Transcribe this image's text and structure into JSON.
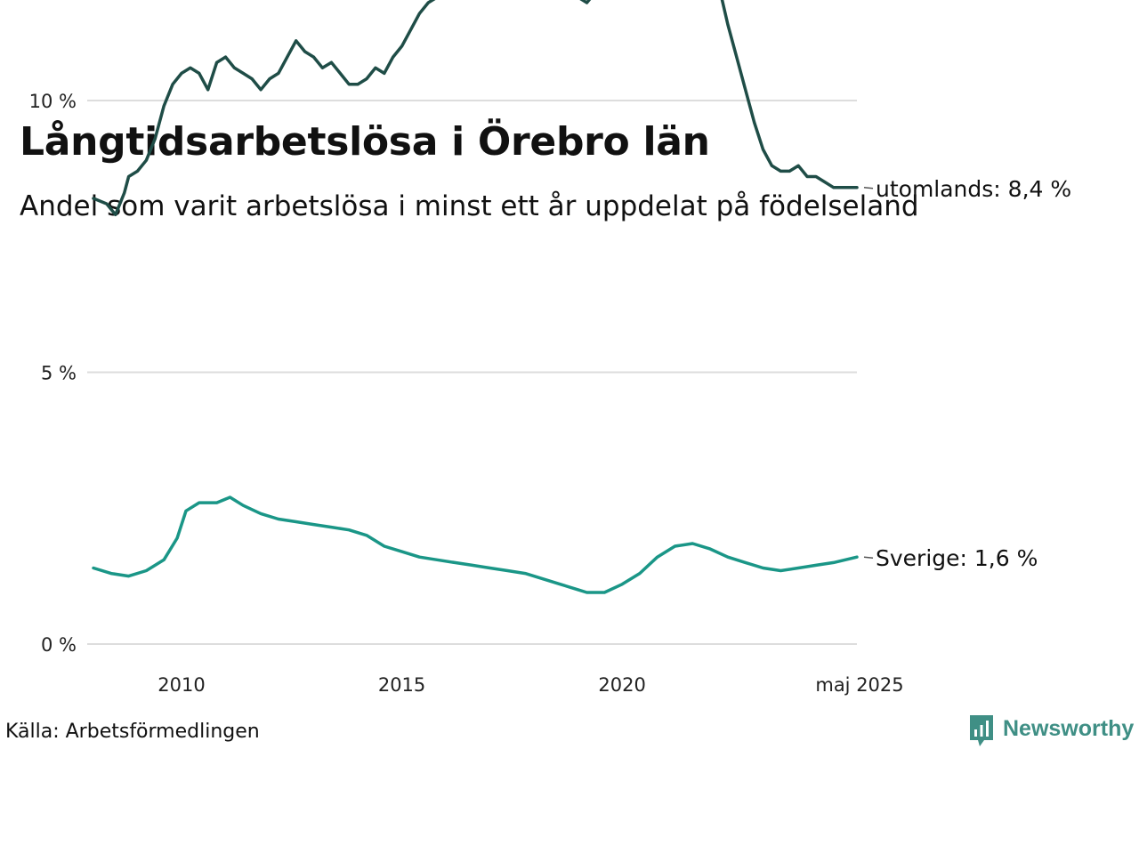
{
  "title": "Långtidsarbetslösa i Örebro län",
  "subtitle": "Andel som varit arbetslösa i minst ett år uppdelat på födelseland",
  "source": "Källa: Arbetsförmedlingen",
  "brand": "Newsworthy",
  "colors": {
    "utomlands": "#1f4d47",
    "sverige": "#1a9687",
    "grid": "#dddddd",
    "brand": "#3f8f85"
  },
  "chart_data": {
    "type": "line",
    "x_ticks": [
      "2010",
      "2015",
      "2020",
      "maj 2025"
    ],
    "y_ticks": [
      "0 %",
      "5 %",
      "10 %"
    ],
    "ylim": [
      0,
      14
    ],
    "grid": "horizontal",
    "series": [
      {
        "key": "utomlands",
        "end_label": "utomlands: 8,4 %",
        "x": [
          2008.0,
          2008.3,
          2008.5,
          2008.7,
          2008.8,
          2009.0,
          2009.2,
          2009.4,
          2009.6,
          2009.8,
          2010.0,
          2010.2,
          2010.4,
          2010.6,
          2010.8,
          2011.0,
          2011.2,
          2011.4,
          2011.6,
          2011.8,
          2012.0,
          2012.2,
          2012.4,
          2012.6,
          2012.8,
          2013.0,
          2013.2,
          2013.4,
          2013.6,
          2013.8,
          2014.0,
          2014.2,
          2014.4,
          2014.6,
          2014.8,
          2015.0,
          2015.2,
          2015.4,
          2015.6,
          2015.8,
          2016.0,
          2016.2,
          2016.4,
          2016.6,
          2016.8,
          2017.0,
          2017.2,
          2017.4,
          2017.6,
          2017.8,
          2017.9,
          2018.1,
          2018.3,
          2018.5,
          2018.7,
          2018.9,
          2019.0,
          2019.2,
          2019.4,
          2019.6,
          2019.8,
          2020.0,
          2020.1,
          2020.3,
          2020.5,
          2020.7,
          2020.9,
          2021.0,
          2021.2,
          2021.4,
          2021.6,
          2021.8,
          2022.0,
          2022.2,
          2022.4,
          2022.6,
          2022.8,
          2023.0,
          2023.2,
          2023.4,
          2023.6,
          2023.8,
          2024.0,
          2024.2,
          2024.4,
          2024.6,
          2024.8,
          2025.0,
          2025.33
        ],
        "values": [
          8.2,
          8.1,
          7.9,
          8.3,
          8.6,
          8.7,
          8.9,
          9.3,
          9.9,
          10.3,
          10.5,
          10.6,
          10.5,
          10.2,
          10.7,
          10.8,
          10.6,
          10.5,
          10.4,
          10.2,
          10.4,
          10.5,
          10.8,
          11.1,
          10.9,
          10.8,
          10.6,
          10.7,
          10.5,
          10.3,
          10.3,
          10.4,
          10.6,
          10.5,
          10.8,
          11.0,
          11.3,
          11.6,
          11.8,
          11.9,
          12.1,
          12.2,
          12.3,
          12.1,
          12.2,
          12.3,
          12.6,
          12.8,
          13.1,
          13.3,
          12.8,
          12.9,
          12.7,
          12.6,
          12.4,
          12.1,
          11.9,
          11.8,
          12.0,
          12.2,
          12.3,
          12.2,
          12.5,
          12.8,
          13.1,
          13.4,
          13.7,
          13.8,
          13.7,
          13.9,
          13.6,
          13.1,
          12.5,
          12.1,
          11.4,
          10.8,
          10.2,
          9.6,
          9.1,
          8.8,
          8.7,
          8.7,
          8.8,
          8.6,
          8.6,
          8.5,
          8.4,
          8.4,
          8.4
        ]
      },
      {
        "key": "sverige",
        "end_label": "Sverige: 1,6 %",
        "x": [
          2008.0,
          2008.4,
          2008.8,
          2009.2,
          2009.6,
          2009.9,
          2010.1,
          2010.4,
          2010.8,
          2011.1,
          2011.4,
          2011.8,
          2012.2,
          2012.6,
          2013.0,
          2013.4,
          2013.8,
          2014.2,
          2014.6,
          2015.0,
          2015.4,
          2015.8,
          2016.2,
          2016.6,
          2017.0,
          2017.4,
          2017.8,
          2018.2,
          2018.6,
          2019.0,
          2019.2,
          2019.6,
          2020.0,
          2020.4,
          2020.8,
          2021.2,
          2021.6,
          2022.0,
          2022.4,
          2022.8,
          2023.2,
          2023.6,
          2024.0,
          2024.4,
          2024.8,
          2025.33
        ],
        "values": [
          1.4,
          1.3,
          1.25,
          1.35,
          1.55,
          1.95,
          2.45,
          2.6,
          2.6,
          2.7,
          2.55,
          2.4,
          2.3,
          2.25,
          2.2,
          2.15,
          2.1,
          2.0,
          1.8,
          1.7,
          1.6,
          1.55,
          1.5,
          1.45,
          1.4,
          1.35,
          1.3,
          1.2,
          1.1,
          1.0,
          0.95,
          0.95,
          1.1,
          1.3,
          1.6,
          1.8,
          1.85,
          1.75,
          1.6,
          1.5,
          1.4,
          1.35,
          1.4,
          1.45,
          1.5,
          1.6
        ]
      }
    ]
  }
}
